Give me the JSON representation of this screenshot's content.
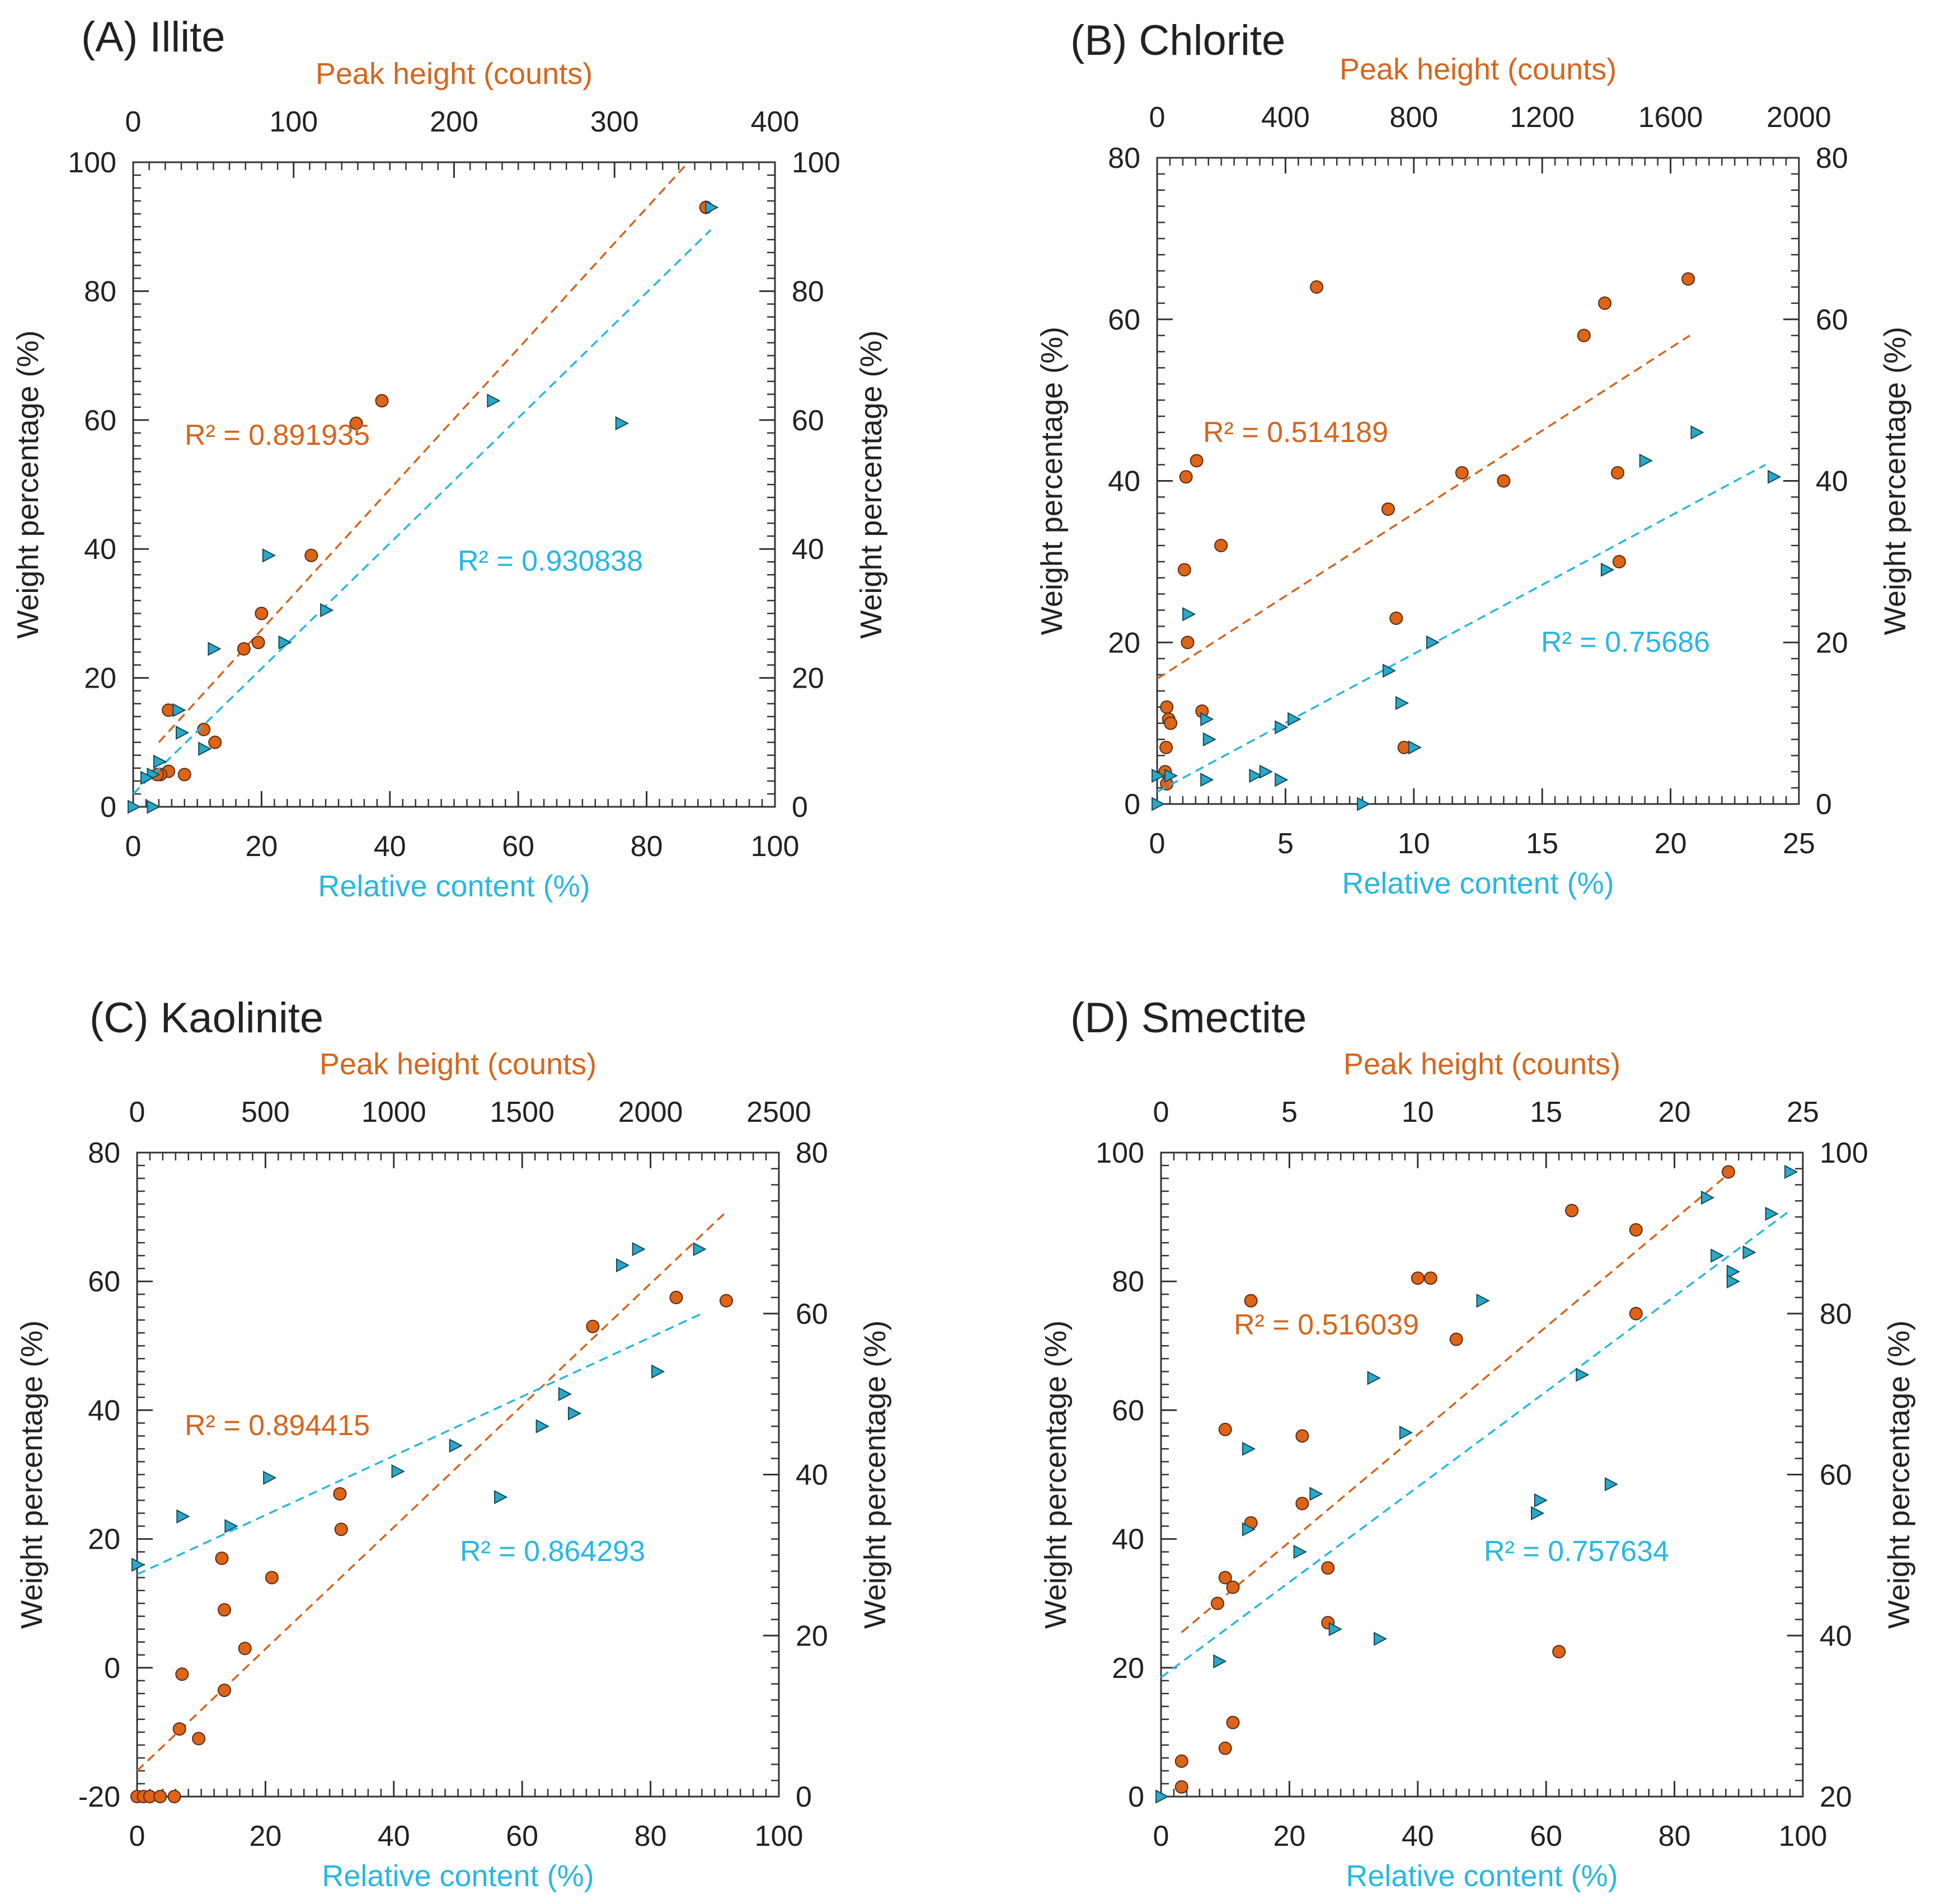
{
  "colors": {
    "orange": "#d4661e",
    "cyan": "#27b8e0",
    "orange_dot": "#de6418",
    "cyan_tri": "#2aa8c8",
    "axis": "#333333"
  },
  "chart_data": [
    {
      "type": "scatter",
      "title": "(A) Illite",
      "xlabel": "Relative content (%)",
      "x2label": "Peak height (counts)",
      "ylabel": "Weight percentage (%)",
      "y2label": "Weight percentage (%)",
      "xlim": [
        0,
        100
      ],
      "xticks": [
        "0",
        "20",
        "40",
        "60",
        "80",
        "100"
      ],
      "x2lim": [
        0,
        400
      ],
      "x2ticks": [
        "0",
        "100",
        "200",
        "300",
        "400"
      ],
      "ylim": [
        0,
        100
      ],
      "yticks": [
        "0",
        "20",
        "40",
        "60",
        "80",
        "100"
      ],
      "y2lim": [
        0,
        100
      ],
      "y2ticks": [
        "0",
        "20",
        "40",
        "60",
        "80",
        "100"
      ],
      "series": [
        {
          "name": "Peak height",
          "axis": "top",
          "marker": "circle",
          "color": "orange",
          "r2_label": "R² = 0.891935",
          "fit": [
            [
              16,
              10
            ],
            [
              346,
              100
            ]
          ],
          "points": [
            [
              357,
              93
            ],
            [
              155,
              63
            ],
            [
              139,
              59.5
            ],
            [
              111,
              39
            ],
            [
              80,
              30
            ],
            [
              78,
              25.5
            ],
            [
              69,
              24.5
            ],
            [
              22,
              15
            ],
            [
              44,
              12
            ],
            [
              51,
              10
            ],
            [
              22,
              5.5
            ],
            [
              17,
              5
            ],
            [
              15,
              5
            ],
            [
              32,
              5
            ]
          ]
        },
        {
          "name": "Relative content",
          "axis": "bottom",
          "marker": "triangle",
          "color": "cyan",
          "r2_label": "R² = 0.930838",
          "fit": [
            [
              0,
              2
            ],
            [
              90,
              89.5
            ]
          ],
          "points": [
            [
              90,
              93
            ],
            [
              56,
              63
            ],
            [
              76,
              59.5
            ],
            [
              21,
              39
            ],
            [
              30,
              30.5
            ],
            [
              23.5,
              25.5
            ],
            [
              12.5,
              24.5
            ],
            [
              7,
              15
            ],
            [
              7.5,
              11.5
            ],
            [
              11,
              9
            ],
            [
              4,
              7
            ],
            [
              3,
              5
            ],
            [
              2,
              4.5
            ],
            [
              0,
              0
            ],
            [
              3,
              0
            ]
          ]
        }
      ]
    },
    {
      "type": "scatter",
      "title": "(B) Chlorite",
      "xlabel": "Relative content (%)",
      "x2label": "Peak height (counts)",
      "ylabel": "Weight percentage (%)",
      "y2label": "Weight percentage (%)",
      "xlim": [
        0,
        25
      ],
      "xticks": [
        "0",
        "5",
        "10",
        "15",
        "20",
        "25"
      ],
      "x2lim": [
        0,
        2000
      ],
      "x2ticks": [
        "0",
        "400",
        "800",
        "1200",
        "1600",
        "2000"
      ],
      "ylim": [
        0,
        80
      ],
      "yticks": [
        "0",
        "20",
        "40",
        "60",
        "80"
      ],
      "y2lim": [
        0,
        80
      ],
      "y2ticks": [
        "0",
        "20",
        "40",
        "60",
        "80"
      ],
      "series": [
        {
          "name": "Peak height",
          "axis": "top",
          "marker": "circle",
          "color": "orange",
          "r2_label": "R² = 0.514189",
          "fit": [
            [
              0,
              15.5
            ],
            [
              1660,
              58
            ]
          ],
          "points": [
            [
              497,
              64
            ],
            [
              1655,
              65
            ],
            [
              1395,
              62
            ],
            [
              1330,
              58
            ],
            [
              950,
              41
            ],
            [
              1080,
              40
            ],
            [
              1435,
              41
            ],
            [
              1440,
              30
            ],
            [
              720,
              36.5
            ],
            [
              745,
              23
            ],
            [
              123,
              42.5
            ],
            [
              90,
              40.5
            ],
            [
              199,
              32
            ],
            [
              85,
              29
            ],
            [
              95,
              20
            ],
            [
              30,
              12
            ],
            [
              36,
              10.5
            ],
            [
              42,
              10
            ],
            [
              140,
              11.5
            ],
            [
              28,
              7
            ],
            [
              770,
              7
            ],
            [
              25,
              4
            ],
            [
              30,
              2.5
            ]
          ]
        },
        {
          "name": "Relative content",
          "axis": "bottom",
          "marker": "triangle",
          "color": "cyan",
          "r2_label": "R² = 0.75686",
          "fit": [
            [
              0,
              1.5
            ],
            [
              23.7,
              42
            ]
          ],
          "points": [
            [
              24,
              40.5
            ],
            [
              21,
              46
            ],
            [
              19,
              42.5
            ],
            [
              17.5,
              29
            ],
            [
              10.7,
              20
            ],
            [
              9,
              16.5
            ],
            [
              9.5,
              12.5
            ],
            [
              10,
              7
            ],
            [
              5.3,
              10.5
            ],
            [
              4.8,
              9.5
            ],
            [
              1.2,
              23.5
            ],
            [
              1.9,
              10.5
            ],
            [
              2,
              8
            ],
            [
              1.9,
              3
            ],
            [
              3.8,
              3.5
            ],
            [
              4.2,
              4
            ],
            [
              4.8,
              3
            ],
            [
              0,
              3.5
            ],
            [
              0.5,
              3.5
            ],
            [
              0,
              0
            ],
            [
              8,
              0
            ]
          ]
        }
      ]
    },
    {
      "type": "scatter",
      "title": "(C) Kaolinite",
      "xlabel": "Relative content (%)",
      "x2label": "Peak height (counts)",
      "ylabel": "Weight percentage (%)",
      "y2label": "Weight percentage (%)",
      "xlim": [
        0,
        100
      ],
      "xticks": [
        "0",
        "20",
        "40",
        "60",
        "80",
        "100"
      ],
      "x2lim": [
        0,
        2500
      ],
      "x2ticks": [
        "0",
        "500",
        "1000",
        "1500",
        "2000",
        "2500"
      ],
      "ylim": [
        -20,
        80
      ],
      "yticks": [
        "-20",
        "0",
        "20",
        "40",
        "60",
        "80"
      ],
      "y2lim": [
        0,
        80
      ],
      "y2ticks": [
        "0",
        "20",
        "40",
        "60",
        "80"
      ],
      "series": [
        {
          "name": "Peak height",
          "axis": "top",
          "marker": "circle",
          "color": "orange",
          "r2_label": "R² = 0.894415",
          "fit": [
            [
              0,
              -16
            ],
            [
              2300,
              71
            ]
          ],
          "points": [
            [
              2295,
              57
            ],
            [
              2100,
              57.5
            ],
            [
              1775,
              53
            ],
            [
              790,
              27
            ],
            [
              795,
              21.5
            ],
            [
              330,
              17
            ],
            [
              525,
              14
            ],
            [
              340,
              9
            ],
            [
              420,
              3
            ],
            [
              175,
              -1
            ],
            [
              340,
              -3.5
            ],
            [
              165,
              -9.5
            ],
            [
              240,
              -11
            ],
            [
              0,
              -20
            ],
            [
              25,
              -20
            ],
            [
              50,
              -20
            ],
            [
              90,
              -20
            ],
            [
              145,
              -20
            ]
          ]
        },
        {
          "name": "Relative content",
          "axis": "bottom",
          "marker": "triangle",
          "color": "cyan",
          "r2_label": "R² = 0.864293",
          "fit": [
            [
              0,
              14.5
            ],
            [
              88,
              55
            ]
          ],
          "points": [
            [
              78,
              65
            ],
            [
              87.5,
              65
            ],
            [
              75.5,
              62.5
            ],
            [
              81,
              46
            ],
            [
              66.5,
              42.5
            ],
            [
              68,
              39.5
            ],
            [
              63,
              37.5
            ],
            [
              49.5,
              34.5
            ],
            [
              40.5,
              30.5
            ],
            [
              20.5,
              29.5
            ],
            [
              56.5,
              26.5
            ],
            [
              14.5,
              22
            ],
            [
              7,
              23.5
            ],
            [
              0,
              16
            ]
          ]
        }
      ]
    },
    {
      "type": "scatter",
      "title": "(D) Smectite",
      "xlabel": "Relative content (%)",
      "x2label": "Peak height (counts)",
      "ylabel": "Weight percentage (%)",
      "y2label": "Weight percentage (%)",
      "xlim": [
        0,
        100
      ],
      "xticks": [
        "0",
        "20",
        "40",
        "60",
        "80",
        "100"
      ],
      "x2lim": [
        0,
        25
      ],
      "x2ticks": [
        "0",
        "5",
        "10",
        "15",
        "20",
        "25"
      ],
      "ylim": [
        0,
        100
      ],
      "yticks": [
        "0",
        "20",
        "40",
        "60",
        "80",
        "100"
      ],
      "y2lim": [
        20,
        100
      ],
      "y2ticks": [
        "20",
        "40",
        "60",
        "80",
        "100"
      ],
      "series": [
        {
          "name": "Peak height",
          "axis": "top",
          "marker": "circle",
          "color": "orange",
          "r2_label": "R² = 0.516039",
          "fit": [
            [
              0.8,
              25.5
            ],
            [
              22.2,
              97
            ]
          ],
          "points": [
            [
              22.1,
              97
            ],
            [
              16,
              91
            ],
            [
              18.5,
              88
            ],
            [
              10,
              80.5
            ],
            [
              10.5,
              80.5
            ],
            [
              11.5,
              71
            ],
            [
              3.5,
              77
            ],
            [
              18.5,
              75
            ],
            [
              2.5,
              57
            ],
            [
              5.5,
              56
            ],
            [
              5.5,
              45.5
            ],
            [
              3.5,
              42.5
            ],
            [
              6.5,
              35.5
            ],
            [
              2.5,
              34
            ],
            [
              2.8,
              32.5
            ],
            [
              2.2,
              30
            ],
            [
              6.5,
              27
            ],
            [
              15.5,
              22.5
            ],
            [
              2.8,
              11.5
            ],
            [
              0.8,
              5.5
            ],
            [
              2.5,
              7.5
            ],
            [
              0.8,
              1.5
            ]
          ]
        },
        {
          "name": "Relative content",
          "axis": "bottom",
          "marker": "triangle",
          "color": "cyan",
          "r2_label": "R² = 0.757634",
          "fit": [
            [
              0,
              18.5
            ],
            [
              98,
              91
            ]
          ],
          "points": [
            [
              98,
              97
            ],
            [
              85,
              93
            ],
            [
              95,
              90.5
            ],
            [
              86.5,
              84
            ],
            [
              91.5,
              84.5
            ],
            [
              89,
              81.5
            ],
            [
              89,
              80
            ],
            [
              50,
              77
            ],
            [
              33,
              65
            ],
            [
              65.5,
              65.5
            ],
            [
              38,
              56.5
            ],
            [
              13.5,
              54
            ],
            [
              70,
              48.5
            ],
            [
              24,
              47
            ],
            [
              13.5,
              41.5
            ],
            [
              59,
              46
            ],
            [
              58.5,
              44
            ],
            [
              21.5,
              38
            ],
            [
              27,
              26
            ],
            [
              34,
              24.5
            ],
            [
              9,
              21
            ],
            [
              0,
              0
            ]
          ]
        }
      ]
    }
  ]
}
